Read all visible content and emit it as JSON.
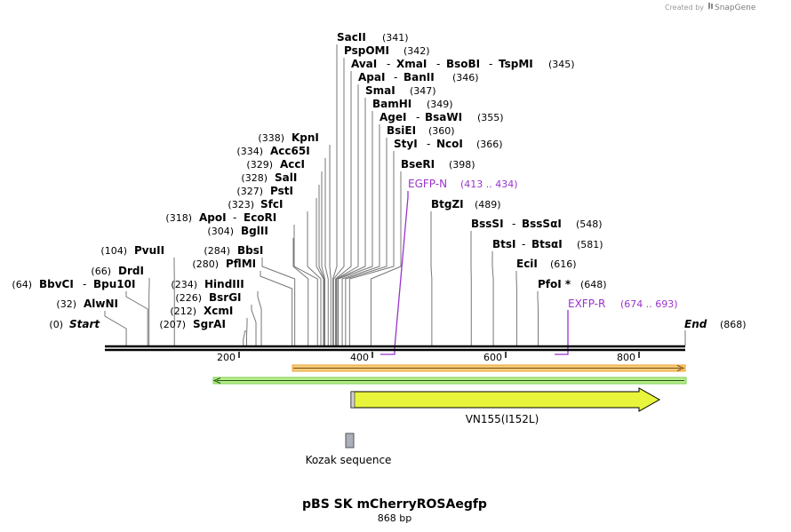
{
  "credit": {
    "prefix": "Created by",
    "brand": "SnapGene"
  },
  "title": "pBS SK mCherryROSAegfp",
  "subtitle": "868 bp",
  "sequence_length": 868,
  "ends": {
    "start": {
      "label": "Start",
      "pos": "(0)",
      "bp": 0
    },
    "end": {
      "label": "End",
      "pos": "(868)",
      "bp": 868
    }
  },
  "ticks": [
    {
      "bp": 200,
      "label": "200"
    },
    {
      "bp": 400,
      "label": "400"
    },
    {
      "bp": 600,
      "label": "600"
    },
    {
      "bp": 800,
      "label": "800"
    }
  ],
  "sites_left": [
    {
      "pos": "(32)",
      "names": [
        "AlwNI"
      ],
      "bp": 32
    },
    {
      "pos": "(64)",
      "names": [
        "BbvCI",
        "Bpu10I"
      ],
      "bp": 64
    },
    {
      "pos": "(66)",
      "names": [
        "DrdI"
      ],
      "bp": 66
    },
    {
      "pos": "(104)",
      "names": [
        "PvuII"
      ],
      "bp": 104
    },
    {
      "pos": "(207)",
      "names": [
        "SgrAI"
      ],
      "bp": 207
    },
    {
      "pos": "(212)",
      "names": [
        "XcmI"
      ],
      "bp": 212
    },
    {
      "pos": "(226)",
      "names": [
        "BsrGI"
      ],
      "bp": 226
    },
    {
      "pos": "(234)",
      "names": [
        "HindIII"
      ],
      "bp": 234
    },
    {
      "pos": "(280)",
      "names": [
        "PflMI"
      ],
      "bp": 280
    },
    {
      "pos": "(284)",
      "names": [
        "BbsI"
      ],
      "bp": 284
    },
    {
      "pos": "(304)",
      "names": [
        "BglII"
      ],
      "bp": 304
    },
    {
      "pos": "(318)",
      "names": [
        "ApoI",
        "EcoRI"
      ],
      "bp": 318
    },
    {
      "pos": "(323)",
      "names": [
        "SfcI"
      ],
      "bp": 323
    },
    {
      "pos": "(327)",
      "names": [
        "PstI"
      ],
      "bp": 327
    },
    {
      "pos": "(328)",
      "names": [
        "SalI"
      ],
      "bp": 328
    },
    {
      "pos": "(329)",
      "names": [
        "AccI"
      ],
      "bp": 329
    },
    {
      "pos": "(334)",
      "names": [
        "Acc65I"
      ],
      "bp": 334
    },
    {
      "pos": "(338)",
      "names": [
        "KpnI"
      ],
      "bp": 338
    }
  ],
  "sites_right": [
    {
      "pos": "(341)",
      "names": [
        "SacII"
      ],
      "bp": 341
    },
    {
      "pos": "(342)",
      "names": [
        "PspOMI"
      ],
      "bp": 342
    },
    {
      "pos": "(345)",
      "names": [
        "AvaI",
        "XmaI",
        "BsoBI",
        "TspMI"
      ],
      "bp": 345
    },
    {
      "pos": "(346)",
      "names": [
        "ApaI",
        "BanII"
      ],
      "bp": 346
    },
    {
      "pos": "(347)",
      "names": [
        "SmaI"
      ],
      "bp": 347
    },
    {
      "pos": "(349)",
      "names": [
        "BamHI"
      ],
      "bp": 349
    },
    {
      "pos": "(355)",
      "names": [
        "AgeI",
        "BsaWI"
      ],
      "bp": 355
    },
    {
      "pos": "(360)",
      "names": [
        "BsiEI"
      ],
      "bp": 360
    },
    {
      "pos": "(366)",
      "names": [
        "StyI",
        "NcoI"
      ],
      "bp": 366
    },
    {
      "pos": "(398)",
      "names": [
        "BseRI"
      ],
      "bp": 398
    },
    {
      "pos": "(489)",
      "names": [
        "BtgZI"
      ],
      "bp": 489
    },
    {
      "pos": "(548)",
      "names": [
        "BssSI",
        "BssSαI"
      ],
      "bp": 548
    },
    {
      "pos": "(581)",
      "names": [
        "BtsI",
        "BtsαI"
      ],
      "bp": 581
    },
    {
      "pos": "(616)",
      "names": [
        "EciI"
      ],
      "bp": 616
    },
    {
      "pos": "(648)",
      "names": [
        "PfoI *"
      ],
      "bp": 648
    }
  ],
  "primers": [
    {
      "name": "EGFP-N",
      "range": "(413 .. 434)",
      "start": 413,
      "end": 434
    },
    {
      "name": "EXFP-R",
      "range": "(674 .. 693)",
      "start": 674,
      "end": 693
    }
  ],
  "features": [
    {
      "name": "VN155(I152L)",
      "type": "cds"
    },
    {
      "name": "Kozak sequence",
      "type": "misc"
    }
  ],
  "colors": {
    "primer": "#9933cc",
    "cds_fill": "#e8f53c",
    "bar_orange": "#f0a030",
    "bar_green": "#7ad04a",
    "kozak": "#a9b0b8"
  }
}
